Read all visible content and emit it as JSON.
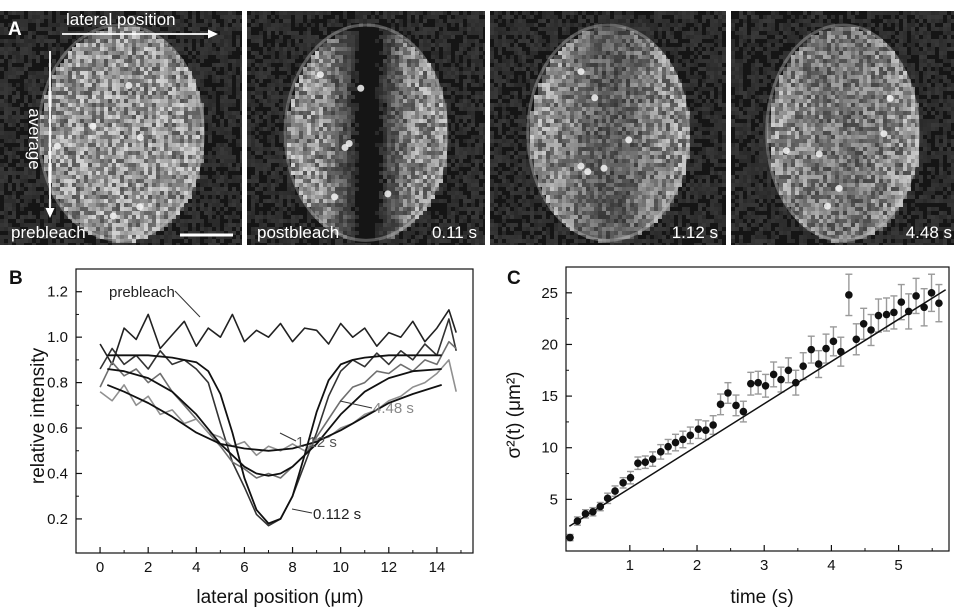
{
  "panel_a": {
    "letter": "A",
    "arrow_lateral_label": "lateral position",
    "arrow_average_label": "average",
    "images": [
      {
        "left_label": "prebleach",
        "time_label": "",
        "bleached": false
      },
      {
        "left_label": "postbleach",
        "time_label": "0.11 s",
        "bleached": true,
        "bleach_depth": 0.95
      },
      {
        "left_label": "",
        "time_label": "1.12 s",
        "bleached": true,
        "bleach_depth": 0.45
      },
      {
        "left_label": "",
        "time_label": "4.48 s",
        "bleached": true,
        "bleach_depth": 0.25
      }
    ]
  },
  "chart_data": [
    {
      "id": "B",
      "type": "line",
      "letter": "B",
      "title": "",
      "xlabel": "lateral position (μm)",
      "ylabel": "relative intensity",
      "xlim": [
        -1,
        15.5
      ],
      "ylim": [
        0.05,
        1.3
      ],
      "xticks": [
        0,
        2,
        4,
        6,
        8,
        10,
        12,
        14
      ],
      "yticks": [
        0.2,
        0.4,
        0.6,
        0.8,
        1.0,
        1.2
      ],
      "ytick_labels": [
        "0.2",
        "0.4",
        "0.6",
        "0.8",
        "1.0",
        "1.2"
      ],
      "grid": false,
      "annotations": [
        "prebleach",
        "4.48 s",
        "1.12 s",
        "0.112 s"
      ],
      "series": [
        {
          "label": "prebleach",
          "color": "#222222",
          "fit": false,
          "x": [
            0.0,
            0.5,
            1.0,
            1.5,
            2.0,
            2.5,
            3.0,
            3.5,
            4.0,
            4.5,
            5.0,
            5.5,
            6.0,
            6.5,
            7.0,
            7.5,
            8.0,
            8.5,
            9.0,
            9.5,
            10.0,
            10.5,
            11.0,
            11.5,
            12.0,
            12.5,
            13.0,
            13.5,
            14.0,
            14.5,
            14.8
          ],
          "y": [
            0.97,
            0.88,
            1.04,
            0.99,
            1.1,
            0.95,
            1.01,
            1.07,
            0.96,
            1.04,
            1.0,
            1.1,
            0.98,
            1.03,
            1.0,
            1.06,
            0.98,
            1.04,
            1.03,
            0.97,
            1.06,
            1.0,
            1.04,
            0.96,
            1.02,
            1.0,
            1.07,
            0.98,
            1.04,
            1.12,
            1.02
          ]
        },
        {
          "label": "0.112 s",
          "color": "#333333",
          "fit": false,
          "x": [
            0.0,
            0.5,
            1.0,
            1.5,
            2.0,
            2.5,
            3.0,
            3.5,
            4.0,
            4.5,
            5.0,
            5.5,
            6.0,
            6.5,
            7.0,
            7.5,
            8.0,
            8.5,
            9.0,
            9.5,
            10.0,
            10.5,
            11.0,
            11.5,
            12.0,
            12.5,
            13.0,
            13.5,
            14.0,
            14.5,
            14.8
          ],
          "y": [
            0.86,
            0.95,
            0.88,
            0.92,
            0.86,
            0.94,
            0.88,
            0.9,
            0.86,
            0.8,
            0.62,
            0.45,
            0.34,
            0.22,
            0.17,
            0.2,
            0.3,
            0.44,
            0.58,
            0.74,
            0.85,
            0.9,
            0.87,
            0.93,
            0.88,
            0.94,
            0.9,
            0.97,
            0.92,
            1.08,
            0.94
          ]
        },
        {
          "label": "1.12 s",
          "color": "#6f6f6f",
          "fit": false,
          "x": [
            0.0,
            0.5,
            1.0,
            1.5,
            2.0,
            2.5,
            3.0,
            3.5,
            4.0,
            4.5,
            5.0,
            5.5,
            6.0,
            6.5,
            7.0,
            7.5,
            8.0,
            8.5,
            9.0,
            9.5,
            10.0,
            10.5,
            11.0,
            11.5,
            12.0,
            12.5,
            13.0,
            13.5,
            14.0,
            14.5,
            14.8
          ],
          "y": [
            0.78,
            0.89,
            0.83,
            0.86,
            0.8,
            0.84,
            0.76,
            0.7,
            0.64,
            0.58,
            0.52,
            0.45,
            0.42,
            0.38,
            0.4,
            0.38,
            0.43,
            0.48,
            0.56,
            0.64,
            0.72,
            0.78,
            0.8,
            0.85,
            0.84,
            0.88,
            0.85,
            0.9,
            0.88,
            0.98,
            0.95
          ]
        },
        {
          "label": "4.48 s",
          "color": "#909090",
          "fit": false,
          "x": [
            0.0,
            0.5,
            1.0,
            1.5,
            2.0,
            2.5,
            3.0,
            3.5,
            4.0,
            4.5,
            5.0,
            5.5,
            6.0,
            6.5,
            7.0,
            7.5,
            8.0,
            8.5,
            9.0,
            9.5,
            10.0,
            10.5,
            11.0,
            11.5,
            12.0,
            12.5,
            13.0,
            13.5,
            14.0,
            14.5,
            14.8
          ],
          "y": [
            0.76,
            0.72,
            0.79,
            0.7,
            0.74,
            0.66,
            0.68,
            0.62,
            0.64,
            0.58,
            0.56,
            0.52,
            0.54,
            0.48,
            0.52,
            0.5,
            0.53,
            0.5,
            0.55,
            0.56,
            0.6,
            0.62,
            0.66,
            0.68,
            0.72,
            0.74,
            0.78,
            0.8,
            0.84,
            0.9,
            0.76
          ]
        },
        {
          "label": "fit 0.112 s",
          "color": "#111111",
          "fit": true,
          "x": [
            0.3,
            1,
            2,
            3,
            4,
            4.5,
            5,
            5.5,
            6,
            6.5,
            7,
            7.5,
            8,
            8.5,
            9,
            9.5,
            10,
            10.5,
            11,
            12,
            13,
            14.2
          ],
          "y": [
            0.92,
            0.92,
            0.92,
            0.91,
            0.89,
            0.85,
            0.75,
            0.58,
            0.38,
            0.24,
            0.18,
            0.2,
            0.3,
            0.48,
            0.67,
            0.81,
            0.88,
            0.9,
            0.91,
            0.92,
            0.92,
            0.92
          ]
        },
        {
          "label": "fit 1.12 s",
          "color": "#111111",
          "fit": true,
          "x": [
            0.3,
            1,
            2,
            3,
            4,
            5,
            6,
            6.5,
            7,
            7.5,
            8,
            9,
            10,
            11,
            12,
            13,
            14.2
          ],
          "y": [
            0.86,
            0.85,
            0.82,
            0.76,
            0.66,
            0.53,
            0.43,
            0.4,
            0.39,
            0.4,
            0.43,
            0.53,
            0.66,
            0.76,
            0.82,
            0.85,
            0.86
          ]
        },
        {
          "label": "fit 4.48 s",
          "color": "#111111",
          "fit": true,
          "x": [
            0.3,
            1,
            2,
            3,
            4,
            5,
            6,
            7,
            8,
            9,
            10,
            11,
            12,
            13,
            14.2
          ],
          "y": [
            0.79,
            0.76,
            0.71,
            0.65,
            0.58,
            0.53,
            0.51,
            0.5,
            0.51,
            0.54,
            0.59,
            0.65,
            0.71,
            0.75,
            0.79
          ]
        }
      ]
    },
    {
      "id": "C",
      "type": "scatter",
      "letter": "C",
      "title": "",
      "xlabel": "time (s)",
      "ylabel": "σ²(t) (μm²)",
      "xlim": [
        0.05,
        5.75
      ],
      "ylim": [
        0,
        27.5
      ],
      "xticks": [
        1,
        2,
        3,
        4,
        5
      ],
      "yticks": [
        5,
        10,
        15,
        20,
        25
      ],
      "grid": false,
      "fit_line": {
        "x": [
          0.1,
          5.7
        ],
        "y": [
          2.4,
          25.3
        ]
      },
      "points": {
        "x": [
          0.11,
          0.22,
          0.34,
          0.45,
          0.56,
          0.67,
          0.78,
          0.9,
          1.01,
          1.12,
          1.23,
          1.34,
          1.46,
          1.57,
          1.68,
          1.79,
          1.9,
          2.02,
          2.13,
          2.24,
          2.35,
          2.46,
          2.58,
          2.69,
          2.8,
          2.91,
          3.02,
          3.14,
          3.25,
          3.36,
          3.47,
          3.58,
          3.7,
          3.81,
          3.92,
          4.03,
          4.14,
          4.26,
          4.37,
          4.48,
          4.59,
          4.7,
          4.82,
          4.93,
          5.04,
          5.15,
          5.26,
          5.38,
          5.49,
          5.6
        ],
        "y": [
          1.3,
          2.9,
          3.6,
          3.8,
          4.3,
          5.1,
          5.8,
          6.6,
          7.1,
          8.5,
          8.6,
          8.9,
          9.6,
          10.1,
          10.5,
          10.8,
          11.2,
          11.8,
          11.7,
          12.2,
          14.2,
          15.3,
          14.1,
          13.5,
          16.2,
          16.3,
          16.0,
          17.1,
          16.6,
          17.5,
          16.3,
          17.9,
          19.5,
          18.1,
          19.6,
          20.3,
          19.3,
          24.8,
          20.5,
          22.0,
          21.4,
          22.8,
          22.9,
          23.1,
          24.1,
          23.2,
          24.7,
          23.6,
          25.0,
          24.0
        ],
        "err": [
          0.3,
          0.4,
          0.4,
          0.4,
          0.4,
          0.5,
          0.5,
          0.5,
          0.6,
          0.6,
          0.6,
          0.7,
          0.7,
          0.7,
          0.8,
          0.8,
          0.8,
          0.9,
          0.9,
          0.9,
          1.0,
          1.0,
          1.0,
          1.0,
          1.1,
          1.1,
          1.1,
          1.2,
          1.2,
          1.2,
          1.2,
          1.3,
          1.3,
          1.3,
          1.4,
          1.4,
          1.4,
          2.0,
          1.5,
          1.5,
          1.5,
          1.6,
          1.6,
          1.6,
          1.7,
          1.7,
          1.7,
          1.8,
          1.8,
          1.8
        ],
        "color": "#111111",
        "err_color": "#9a9a9a"
      }
    }
  ]
}
